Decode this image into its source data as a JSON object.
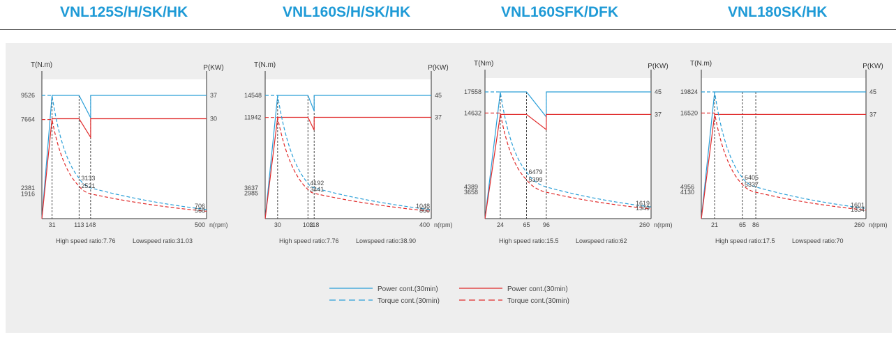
{
  "header": {
    "titles": [
      "VNL125S/H/SK/HK",
      "VNL160S/H/SK/HK",
      "VNL160SFK/DFK",
      "VNL180SK/HK"
    ]
  },
  "colors": {
    "power": "#2a9fd8",
    "torque": "#e02a2a",
    "axis": "#333333",
    "text": "#444444"
  },
  "legend": {
    "blue_solid": "Power cont.(30min)",
    "blue_dashed": "Torque cont.(30min)",
    "red_solid": "Power cont.(30min)",
    "red_dashed": "Torque cont.(30min)"
  },
  "chart_data": [
    {
      "type": "line",
      "title": "VNL125S/H/SK/HK",
      "ylabel": "T(N.m)",
      "y2label": "P(KW)",
      "xlabel": "n(rpm)",
      "x_ticks": [
        "31",
        "113",
        "148",
        "500"
      ],
      "y_ticks": [
        "9526",
        "7664",
        "2381",
        "1916"
      ],
      "y2_ticks": [
        "37",
        "30"
      ],
      "torque_labels": [
        "3133",
        "2521",
        "706",
        "568"
      ],
      "high_speed_ratio": "High speed ratio:7.76",
      "low_speed_ratio": "Lowspeed ratio:31.03",
      "series": [
        {
          "name": "Power cont.(30min)",
          "points": [
            [
              0,
              0
            ],
            [
              31,
              37
            ],
            [
              113,
              37
            ],
            [
              148,
              30.3
            ],
            [
              148,
              37
            ],
            [
              500,
              37
            ]
          ]
        },
        {
          "name": "Power cont.(30min)",
          "points": [
            [
              0,
              0
            ],
            [
              31,
              30
            ],
            [
              113,
              30
            ],
            [
              148,
              24.4
            ],
            [
              148,
              30
            ],
            [
              500,
              30
            ]
          ]
        },
        {
          "name": "Torque cont.(30min)",
          "points": [
            [
              0,
              9526
            ],
            [
              31,
              9526
            ],
            [
              113,
              3133
            ],
            [
              148,
              2381
            ],
            [
              500,
              706
            ]
          ]
        },
        {
          "name": "Torque cont.(30min)",
          "points": [
            [
              0,
              7664
            ],
            [
              31,
              7664
            ],
            [
              113,
              2521
            ],
            [
              148,
              1916
            ],
            [
              500,
              568
            ]
          ]
        }
      ]
    },
    {
      "type": "line",
      "title": "VNL160S/H/SK/HK",
      "ylabel": "T(N.m)",
      "y2label": "P(KW)",
      "xlabel": "n(rpm)",
      "x_ticks": [
        "30",
        "103",
        "118",
        "400"
      ],
      "y_ticks": [
        "14548",
        "11942",
        "3637",
        "2985"
      ],
      "y2_ticks": [
        "45",
        "37"
      ],
      "torque_labels": [
        "4192",
        "3441",
        "1048",
        "860"
      ],
      "high_speed_ratio": "High speed ratio:7.76",
      "low_speed_ratio": "Lowspeed ratio:38.90",
      "series": [
        {
          "name": "Power cont.(30min)",
          "points": [
            [
              0,
              0
            ],
            [
              30,
              45
            ],
            [
              103,
              45
            ],
            [
              118,
              39.3
            ],
            [
              118,
              45
            ],
            [
              400,
              45
            ]
          ]
        },
        {
          "name": "Power cont.(30min)",
          "points": [
            [
              0,
              0
            ],
            [
              30,
              37
            ],
            [
              103,
              37
            ],
            [
              118,
              32.3
            ],
            [
              118,
              37
            ],
            [
              400,
              37
            ]
          ]
        },
        {
          "name": "Torque cont.(30min)",
          "points": [
            [
              0,
              14548
            ],
            [
              30,
              14548
            ],
            [
              103,
              4192
            ],
            [
              118,
              3637
            ],
            [
              400,
              1048
            ]
          ]
        },
        {
          "name": "Torque cont.(30min)",
          "points": [
            [
              0,
              11942
            ],
            [
              30,
              11942
            ],
            [
              103,
              3441
            ],
            [
              118,
              2985
            ],
            [
              400,
              860
            ]
          ]
        }
      ]
    },
    {
      "type": "line",
      "title": "VNL160SFK/DFK",
      "ylabel": "T(Nm)",
      "y2label": "P(KW)",
      "xlabel": "n(rpm)",
      "x_ticks": [
        "24",
        "65",
        "96",
        "260"
      ],
      "y_ticks": [
        "17558",
        "14632",
        "4389",
        "3658"
      ],
      "y2_ticks": [
        "45",
        "37"
      ],
      "torque_labels": [
        "6479",
        "5399",
        "1619",
        "1349"
      ],
      "high_speed_ratio": "High speed ratio:15.5",
      "low_speed_ratio": "Lowspeed ratio:62",
      "series": [
        {
          "name": "Power cont.(30min)",
          "points": [
            [
              0,
              0
            ],
            [
              24,
              45
            ],
            [
              65,
              45
            ],
            [
              96,
              36.1
            ],
            [
              96,
              45
            ],
            [
              260,
              45
            ]
          ]
        },
        {
          "name": "Power cont.(30min)",
          "points": [
            [
              0,
              0
            ],
            [
              24,
              37
            ],
            [
              65,
              37
            ],
            [
              96,
              31.6
            ],
            [
              96,
              37
            ],
            [
              260,
              37
            ]
          ]
        },
        {
          "name": "Torque cont.(30min)",
          "points": [
            [
              0,
              17558
            ],
            [
              24,
              17558
            ],
            [
              65,
              6479
            ],
            [
              96,
              4389
            ],
            [
              260,
              1619
            ]
          ]
        },
        {
          "name": "Torque cont.(30min)",
          "points": [
            [
              0,
              14632
            ],
            [
              24,
              14632
            ],
            [
              65,
              5399
            ],
            [
              96,
              3658
            ],
            [
              260,
              1349
            ]
          ]
        }
      ]
    },
    {
      "type": "line",
      "title": "VNL180SK/HK",
      "ylabel": "T(N.m)",
      "y2label": "P(KW)",
      "xlabel": "n(rpm)",
      "x_ticks": [
        "21",
        "65",
        "86",
        "260"
      ],
      "y_ticks": [
        "19824",
        "16520",
        "4956",
        "4130"
      ],
      "y2_ticks": [
        "45",
        "37"
      ],
      "torque_labels": [
        "6405",
        "5337",
        "1601",
        "1334"
      ],
      "high_speed_ratio": "High speed ratio:17.5",
      "low_speed_ratio": "Lowspeed ratio:70",
      "series": [
        {
          "name": "Power cont.(30min)",
          "points": [
            [
              0,
              0
            ],
            [
              21,
              45
            ],
            [
              65,
              45
            ],
            [
              86,
              45
            ],
            [
              260,
              45
            ]
          ]
        },
        {
          "name": "Power cont.(30min)",
          "points": [
            [
              0,
              0
            ],
            [
              21,
              37
            ],
            [
              65,
              37
            ],
            [
              86,
              37
            ],
            [
              260,
              37
            ]
          ]
        },
        {
          "name": "Torque cont.(30min)",
          "points": [
            [
              0,
              19824
            ],
            [
              21,
              19824
            ],
            [
              65,
              6405
            ],
            [
              86,
              4956
            ],
            [
              260,
              1601
            ]
          ]
        },
        {
          "name": "Torque cont.(30min)",
          "points": [
            [
              0,
              16520
            ],
            [
              21,
              16520
            ],
            [
              65,
              5337
            ],
            [
              86,
              4130
            ],
            [
              260,
              1334
            ]
          ]
        }
      ]
    }
  ]
}
